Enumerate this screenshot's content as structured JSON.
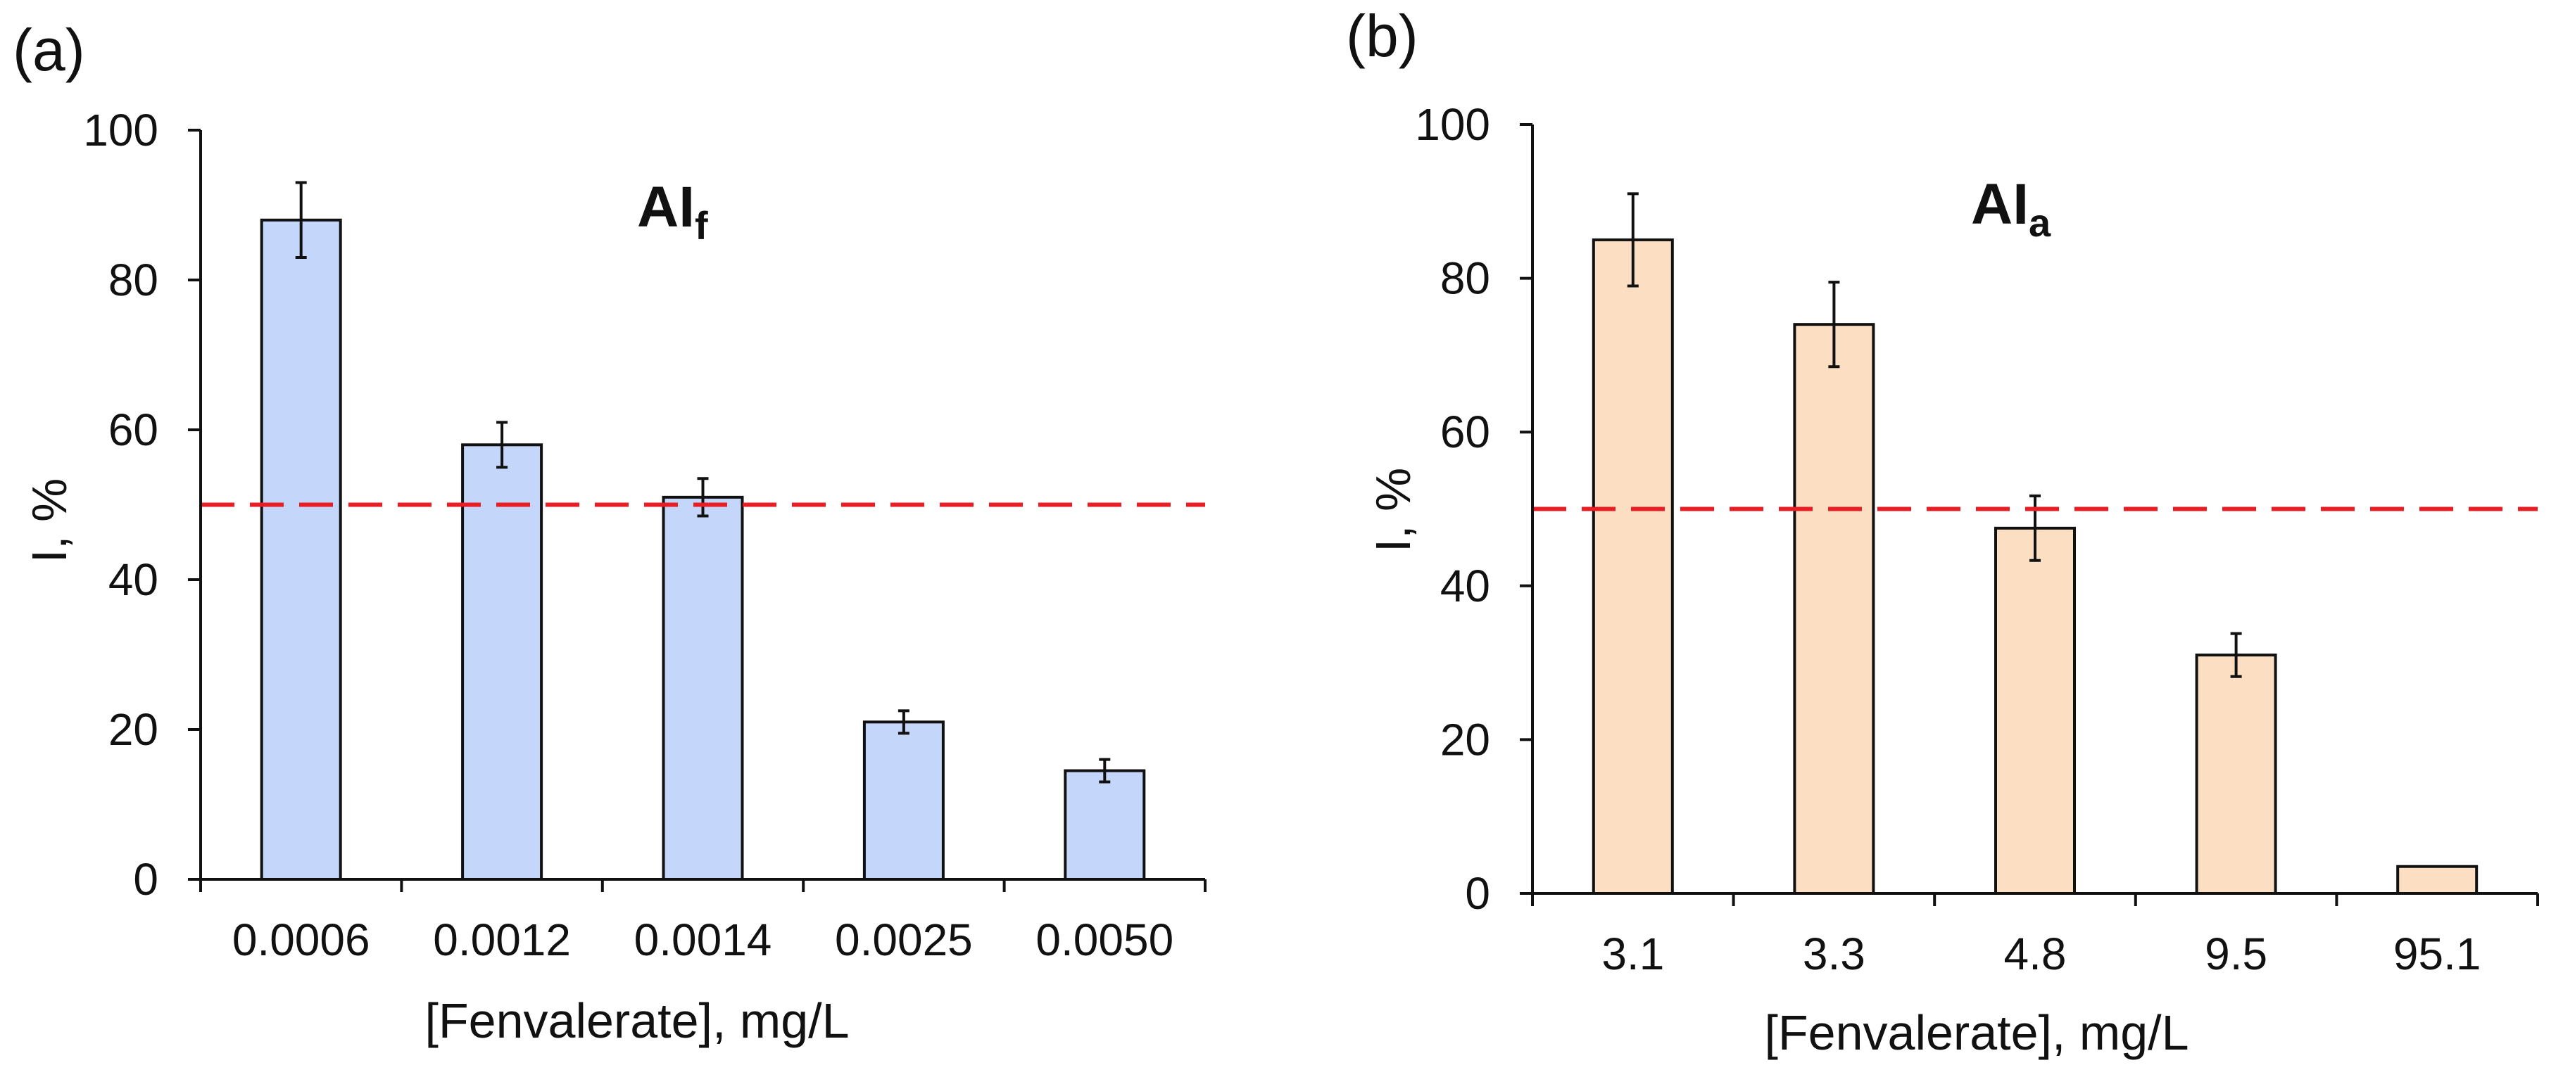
{
  "chart_data": [
    {
      "panel": "(a)",
      "type": "bar",
      "title": "AI",
      "title_subscript": "f",
      "xlabel": "[Fenvalerate], mg/L",
      "ylabel": "I, %",
      "ylim": [
        0,
        100
      ],
      "yticks": [
        0,
        20,
        40,
        60,
        80,
        100
      ],
      "categories": [
        "0.0006",
        "0.0012",
        "0.0014",
        "0.0025",
        "0.0050"
      ],
      "values": [
        88,
        58,
        51,
        21,
        14.5
      ],
      "errors": [
        5,
        3,
        2.5,
        1.5,
        1.5
      ],
      "bar_color": "#c5d6fb",
      "reference_line": {
        "y": 50,
        "color": "#e81e25",
        "style": "dashed"
      }
    },
    {
      "panel": "(b)",
      "type": "bar",
      "title": "AI",
      "title_subscript": "a",
      "xlabel": "[Fenvalerate], mg/L",
      "ylabel": "I, %",
      "ylim": [
        0,
        100
      ],
      "yticks": [
        0,
        20,
        40,
        60,
        80,
        100
      ],
      "categories": [
        "3.1",
        "3.3",
        "4.8",
        "9.5",
        "95.1"
      ],
      "values": [
        85,
        74,
        47.5,
        31,
        3.5
      ],
      "errors": [
        6,
        5.5,
        4.2,
        2.8,
        0
      ],
      "bar_color": "#fcdec3",
      "reference_line": {
        "y": 50,
        "color": "#e81e25",
        "style": "dashed"
      }
    }
  ]
}
